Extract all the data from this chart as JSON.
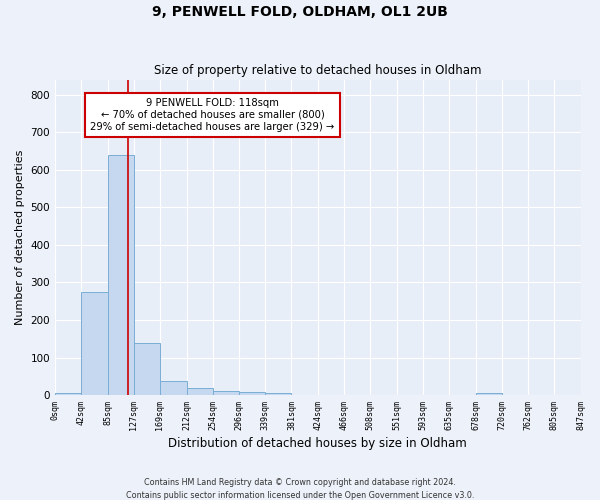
{
  "title": "9, PENWELL FOLD, OLDHAM, OL1 2UB",
  "subtitle": "Size of property relative to detached houses in Oldham",
  "xlabel": "Distribution of detached houses by size in Oldham",
  "ylabel": "Number of detached properties",
  "bar_edges": [
    0,
    42,
    85,
    127,
    169,
    212,
    254,
    296,
    339,
    381,
    424,
    466,
    508,
    551,
    593,
    635,
    678,
    720,
    762,
    805,
    847
  ],
  "bar_heights": [
    5,
    275,
    640,
    140,
    38,
    20,
    12,
    8,
    5,
    0,
    0,
    0,
    0,
    0,
    0,
    0,
    5,
    0,
    0,
    0
  ],
  "bar_color": "#c5d8f0",
  "bar_edge_color": "#7aaed4",
  "vline_x": 118,
  "vline_color": "#cc0000",
  "annotation_title": "9 PENWELL FOLD: 118sqm",
  "annotation_line1": "← 70% of detached houses are smaller (800)",
  "annotation_line2": "29% of semi-detached houses are larger (329) →",
  "annotation_box_color": "#ffffff",
  "annotation_box_edge_color": "#cc0000",
  "ylim": [
    0,
    840
  ],
  "yticks": [
    0,
    100,
    200,
    300,
    400,
    500,
    600,
    700,
    800
  ],
  "xtick_labels": [
    "0sqm",
    "42sqm",
    "85sqm",
    "127sqm",
    "169sqm",
    "212sqm",
    "254sqm",
    "296sqm",
    "339sqm",
    "381sqm",
    "424sqm",
    "466sqm",
    "508sqm",
    "551sqm",
    "593sqm",
    "635sqm",
    "678sqm",
    "720sqm",
    "762sqm",
    "805sqm",
    "847sqm"
  ],
  "footer1": "Contains HM Land Registry data © Crown copyright and database right 2024.",
  "footer2": "Contains public sector information licensed under the Open Government Licence v3.0.",
  "bg_color": "#edf1f9",
  "plot_bg_color": "#e8eef8",
  "grid_color": "#ffffff"
}
